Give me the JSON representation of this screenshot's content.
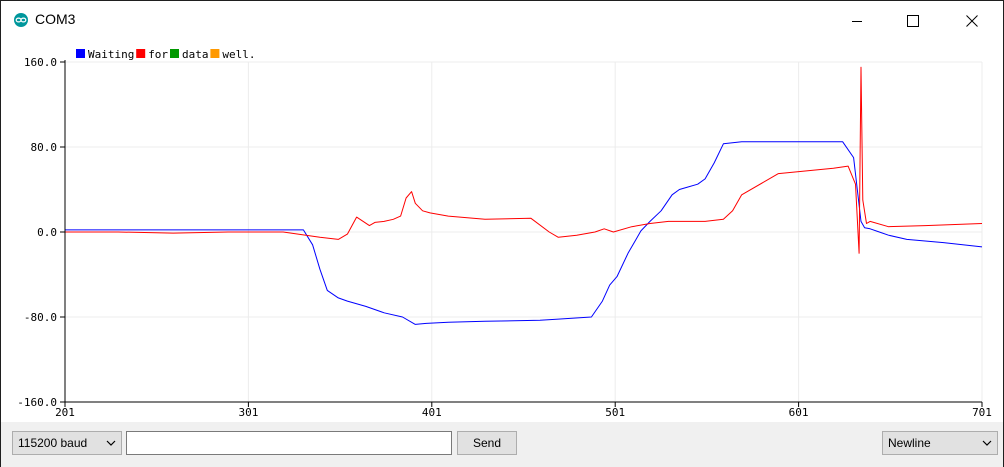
{
  "window": {
    "title": "COM3",
    "app_icon": "arduino-infinity-icon"
  },
  "window_controls": [
    "minimize-icon",
    "maximize-icon",
    "close-icon"
  ],
  "chart_data": {
    "type": "line",
    "legend_placement": "top-left",
    "legend": [
      {
        "name": "Waiting",
        "color": "#0000ff"
      },
      {
        "name": "for",
        "color": "#ff0000"
      },
      {
        "name": "data",
        "color": "#009900"
      },
      {
        "name": "well.",
        "color": "#ff9900"
      }
    ],
    "xlim": [
      201,
      701
    ],
    "ylim": [
      -160,
      160
    ],
    "x_ticks": [
      "201",
      "301",
      "401",
      "501",
      "601",
      "701"
    ],
    "y_ticks": [
      "160.0",
      "80.0",
      "0.0",
      "-80.0",
      "-160.0"
    ],
    "grid": true,
    "series": [
      {
        "name": "Waiting",
        "color": "#0000ff",
        "x": [
          201,
          230,
          260,
          290,
          310,
          331,
          336,
          340,
          344,
          350,
          355,
          365,
          375,
          385,
          392,
          398,
          410,
          430,
          460,
          470,
          488,
          494,
          498,
          502,
          508,
          512,
          515,
          520,
          526,
          532,
          536,
          540,
          546,
          550,
          555,
          560,
          570,
          580,
          600,
          625,
          631,
          633,
          635,
          637,
          640,
          645,
          650,
          660,
          680,
          701
        ],
        "values": [
          2,
          2,
          2,
          2,
          2,
          2,
          -12,
          -35,
          -55,
          -62,
          -65,
          -70,
          -76,
          -80,
          -87,
          -86,
          -85,
          -84,
          -83,
          -82,
          -80,
          -65,
          -50,
          -42,
          -20,
          -8,
          1,
          10,
          20,
          35,
          40,
          42,
          45,
          50,
          65,
          83,
          85,
          85,
          85,
          85,
          70,
          40,
          10,
          4,
          3,
          0,
          -3,
          -7,
          -10,
          -14
        ]
      },
      {
        "name": "for",
        "color": "#ff0000",
        "x": [
          201,
          230,
          260,
          290,
          320,
          340,
          350,
          355,
          360,
          367,
          370,
          375,
          380,
          384,
          387,
          390,
          392,
          396,
          400,
          410,
          430,
          455,
          465,
          470,
          480,
          490,
          495,
          500,
          510,
          520,
          530,
          550,
          560,
          565,
          570,
          590,
          620,
          628,
          632,
          634,
          635,
          636,
          638,
          640,
          650,
          670,
          701
        ],
        "values": [
          0,
          0,
          -1,
          0,
          0,
          -5,
          -7,
          -2,
          14,
          6,
          9,
          10,
          12,
          15,
          32,
          38,
          27,
          20,
          18,
          15,
          12,
          13,
          0,
          -5,
          -3,
          0,
          3,
          0,
          5,
          8,
          10,
          10,
          12,
          20,
          35,
          55,
          60,
          62,
          45,
          -20,
          155,
          30,
          8,
          10,
          5,
          6,
          8
        ]
      }
    ]
  },
  "bottom_bar": {
    "baud_value": "115200 baud",
    "send_input_value": "",
    "send_label": "Send",
    "line_ending_value": "Newline"
  }
}
